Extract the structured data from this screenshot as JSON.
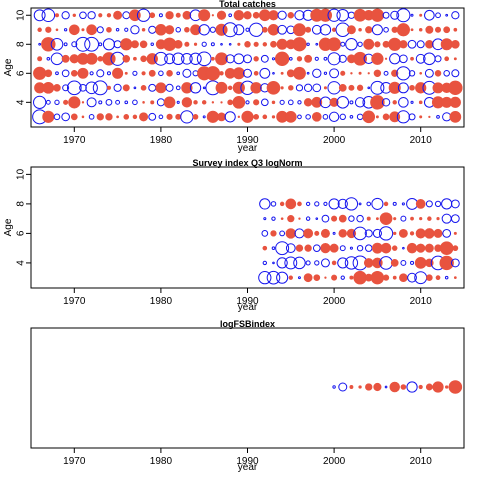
{
  "colors": {
    "positive": "#e8533f",
    "negative": "#1515ee",
    "frame": "#000000"
  },
  "chart_data": [
    {
      "type": "scatter",
      "title": "Total catches",
      "xlabel": "year",
      "ylabel": "Age",
      "xlim": [
        1965,
        2015
      ],
      "ylim": [
        2.3,
        10.5
      ],
      "xticks": [
        1970,
        1980,
        1990,
        2000,
        2010
      ],
      "yticks": [
        4,
        6,
        8,
        10
      ],
      "x": [
        1966,
        2014
      ],
      "y": [
        3,
        10
      ],
      "encoding": "bubble size = residual magnitude; red filled = positive, blue open = negative"
    },
    {
      "type": "scatter",
      "title": "Survey index Q3 logNorm",
      "xlabel": "year",
      "ylabel": "Age",
      "xlim": [
        1965,
        2015
      ],
      "ylim": [
        2.3,
        10.5
      ],
      "xticks": [
        1970,
        1980,
        1990,
        2000,
        2010
      ],
      "yticks": [
        4,
        6,
        8,
        10
      ],
      "x": [
        1992,
        2014
      ],
      "y": [
        3,
        8
      ],
      "encoding": "bubble size = residual magnitude; red filled = positive, blue open = negative"
    },
    {
      "type": "scatter",
      "title": "logFSBindex",
      "xlabel": "year",
      "ylabel": "",
      "xlim": [
        1965,
        2015
      ],
      "xticks": [
        1970,
        1980,
        1990,
        2000,
        2010
      ],
      "x": [
        2000,
        2014
      ],
      "encoding": "bubble size = residual magnitude; red filled = positive, blue open = negative"
    }
  ]
}
